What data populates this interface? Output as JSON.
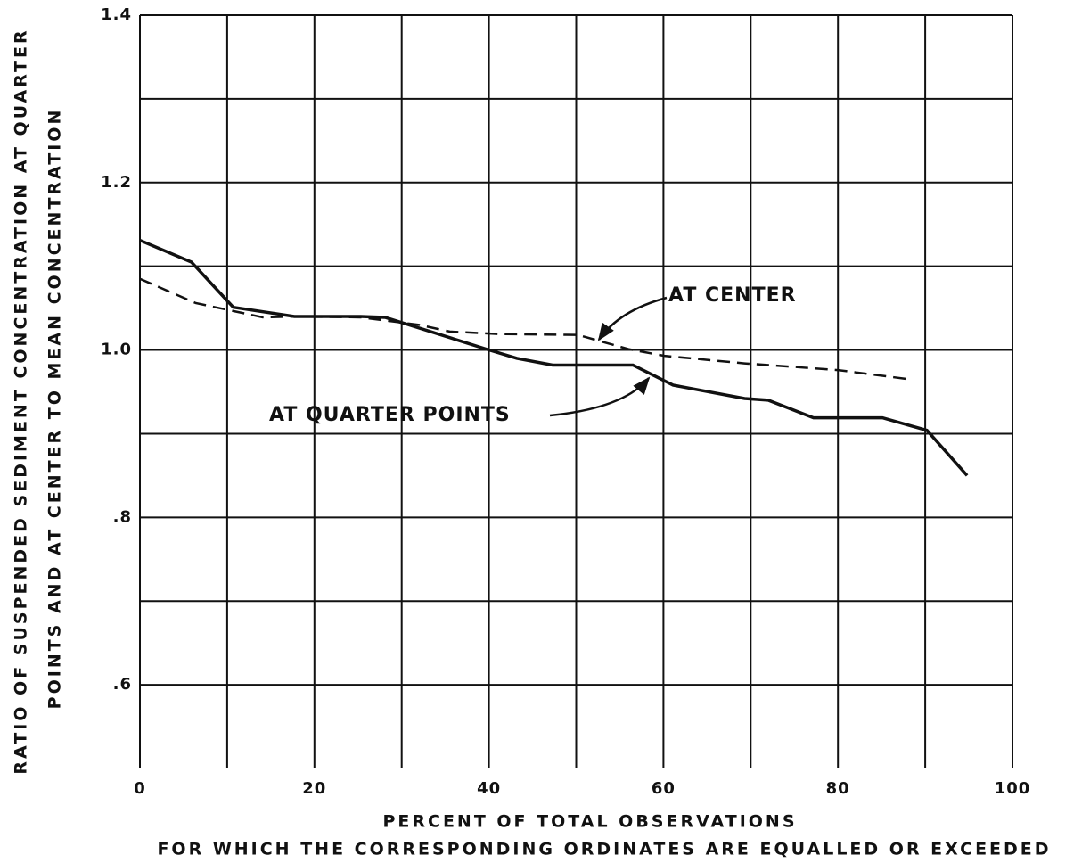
{
  "chart_data": {
    "type": "line",
    "ylabel": [
      "RATIO OF SUSPENDED SEDIMENT CONCENTRATION AT QUARTER",
      "POINTS AND AT CENTER TO MEAN CONCENTRATION"
    ],
    "xlabel": [
      "PERCENT OF TOTAL OBSERVATIONS",
      "FOR WHICH THE CORRESPONDING ORDINATES ARE EQUALLED OR EXCEEDED"
    ],
    "annotations": [
      "AT CENTER",
      "AT QUARTER POINTS"
    ],
    "xlim": [
      0,
      100
    ],
    "ylim": [
      0.5,
      1.4
    ],
    "xticks": [
      0,
      20,
      40,
      60,
      80,
      100
    ],
    "yticks": [
      {
        "value": 0.6,
        "label": ".6"
      },
      {
        "value": 0.8,
        "label": ".8"
      },
      {
        "value": 1,
        "label": "1.0"
      },
      1.2,
      1.4
    ],
    "xgrid_minor": [
      10,
      30,
      50,
      70,
      90
    ],
    "ygrid_minor": [
      0.7,
      0.9,
      1.1,
      1.3
    ],
    "grid": true,
    "series": [
      {
        "name": "AT QUARTER POINTS",
        "color": "#111111",
        "style": "solid",
        "x": [
          0,
          5.9,
          10.7,
          17.7,
          25.3,
          28.1,
          39.7,
          43.2,
          47.3,
          56.5,
          61.1,
          69.3,
          72,
          77.2,
          85.1,
          90.2,
          94.8
        ],
        "values": [
          1.131,
          1.105,
          1.051,
          1.04,
          1.04,
          1.039,
          1.001,
          0.99,
          0.982,
          0.982,
          0.958,
          0.942,
          0.94,
          0.919,
          0.919,
          0.904,
          0.85
        ]
      },
      {
        "name": "AT CENTER",
        "color": "#111111",
        "style": "dashed",
        "x": [
          0,
          6.4,
          14.1,
          17.7,
          25.3,
          32,
          35.5,
          41.2,
          50.2,
          56,
          60.1,
          69.3,
          80,
          88.2
        ],
        "values": [
          1.085,
          1.056,
          1.039,
          1.04,
          1.039,
          1.03,
          1.022,
          1.019,
          1.018,
          1.001,
          0.993,
          0.984,
          0.976,
          0.965
        ]
      }
    ]
  }
}
